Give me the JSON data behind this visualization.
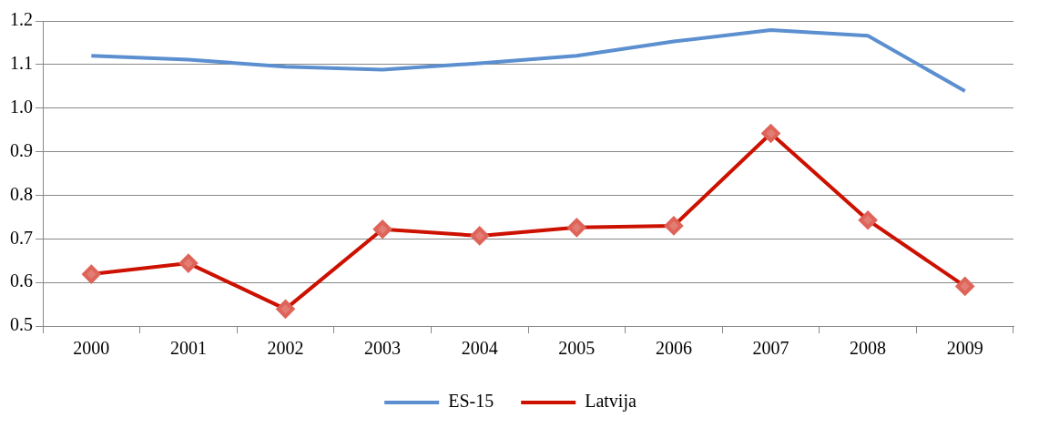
{
  "chart_data": {
    "type": "line",
    "categories": [
      "2000",
      "2001",
      "2002",
      "2003",
      "2004",
      "2005",
      "2006",
      "2007",
      "2008",
      "2009"
    ],
    "series": [
      {
        "name": "ES-15",
        "color": "#5b8fd0",
        "marker": "none",
        "values": [
          1.12,
          1.111,
          1.095,
          1.088,
          1.103,
          1.12,
          1.153,
          1.179,
          1.166,
          1.039
        ]
      },
      {
        "name": "Latvija",
        "color": "#cc1100",
        "marker": "diamond",
        "values": [
          0.619,
          0.644,
          0.539,
          0.722,
          0.707,
          0.726,
          0.73,
          0.942,
          0.743,
          0.591
        ]
      }
    ],
    "ylim": [
      0.5,
      1.2
    ],
    "yticks": [
      {
        "value": 0.5,
        "label": "0.5"
      },
      {
        "value": 0.6,
        "label": "0.6"
      },
      {
        "value": 0.7,
        "label": "0.7"
      },
      {
        "value": 0.8,
        "label": "0.8"
      },
      {
        "value": 0.9,
        "label": "0.9"
      },
      {
        "value": 1,
        "label": "1.0"
      },
      {
        "value": 1.1,
        "label": "1.1"
      },
      {
        "value": 1.2,
        "label": "1.2"
      }
    ],
    "grid": "y",
    "legend": "bottom",
    "line_style": "solid"
  }
}
